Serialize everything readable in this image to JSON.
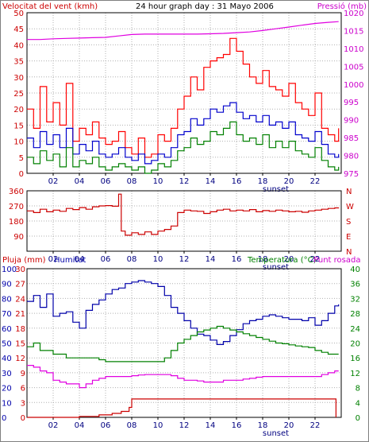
{
  "page": {
    "title": "24 hour graph day : 31 Mayo 2006",
    "border_color": "#7f7f7f",
    "background": "#ffffff"
  },
  "chart_data": [
    {
      "id": "wind-pressure",
      "type": "line",
      "title": "24 hour graph day : 31 Mayo 2006",
      "ylabel_left": "Velocitat del vent (kmh)",
      "ylabel_right": "Pressió (mb)",
      "ylim_left": [
        0,
        50
      ],
      "yticks_left": [
        "0",
        "5",
        "10",
        "15",
        "20",
        "25",
        "30",
        "35",
        "40",
        "45",
        "50"
      ],
      "ylim_right": [
        975,
        1020
      ],
      "yticks_right": [
        "975",
        "980",
        "985",
        "990",
        "995",
        "1000",
        "1005",
        "1010",
        "1015",
        "1020"
      ],
      "xlim": [
        0,
        24
      ],
      "xticks": [
        "02",
        "04",
        "06",
        "08",
        "10",
        "12",
        "14",
        "16",
        "18",
        "20",
        "22"
      ],
      "annotations": [
        "sunset"
      ],
      "grid": true,
      "series": [
        {
          "name": "Pressió (mb)",
          "axis": "right",
          "color": "#e000e0",
          "x": [
            0,
            1,
            2,
            3,
            4,
            5,
            6,
            7,
            8,
            9,
            10,
            11,
            12,
            13,
            14,
            15,
            16,
            17,
            18,
            19,
            20,
            21,
            22,
            23,
            23.8
          ],
          "y": [
            1012.5,
            1012.5,
            1012.7,
            1012.8,
            1012.9,
            1013.0,
            1013.1,
            1013.5,
            1013.9,
            1014.0,
            1014.0,
            1014.0,
            1014.0,
            1014.0,
            1014.1,
            1014.2,
            1014.4,
            1014.6,
            1015.0,
            1015.5,
            1016.0,
            1016.5,
            1017.0,
            1017.3,
            1017.5
          ]
        },
        {
          "name": "Velocitat del vent (kmh) - ràfega",
          "axis": "left",
          "color": "#ff0000",
          "x": [
            0,
            0.5,
            1,
            1.5,
            2,
            2.5,
            3,
            3.5,
            4,
            4.5,
            5,
            5.5,
            6,
            6.5,
            7,
            7.5,
            8,
            8.5,
            9,
            9.5,
            10,
            10.5,
            11,
            11.5,
            12,
            12.5,
            13,
            13.5,
            14,
            14.5,
            15,
            15.5,
            16,
            16.5,
            17,
            17.5,
            18,
            18.5,
            19,
            19.5,
            20,
            20.5,
            21,
            21.5,
            22,
            22.5,
            23,
            23.5,
            23.8
          ],
          "y": [
            20,
            14,
            27,
            16,
            22,
            15,
            28,
            10,
            14,
            12,
            16,
            11,
            9,
            10,
            13,
            8,
            6,
            11,
            5,
            6,
            12,
            10,
            14,
            20,
            24,
            30,
            26,
            33,
            35,
            36,
            37,
            42,
            38,
            34,
            30,
            28,
            32,
            27,
            26,
            24,
            28,
            22,
            20,
            18,
            25,
            14,
            12,
            10,
            14
          ]
        },
        {
          "name": "Velocitat del vent (kmh) - mitjana",
          "axis": "left",
          "color": "#0000cc",
          "x": [
            0,
            0.5,
            1,
            1.5,
            2,
            2.5,
            3,
            3.5,
            4,
            4.5,
            5,
            5.5,
            6,
            6.5,
            7,
            7.5,
            8,
            8.5,
            9,
            9.5,
            10,
            10.5,
            11,
            11.5,
            12,
            12.5,
            13,
            13.5,
            14,
            14.5,
            15,
            15.5,
            16,
            16.5,
            17,
            17.5,
            18,
            18.5,
            19,
            19.5,
            20,
            20.5,
            21,
            21.5,
            22,
            22.5,
            23,
            23.5,
            23.8
          ],
          "y": [
            11,
            8,
            13,
            9,
            12,
            8,
            14,
            6,
            9,
            7,
            10,
            6,
            5,
            6,
            8,
            5,
            4,
            6,
            3,
            4,
            6,
            5,
            8,
            12,
            13,
            17,
            15,
            17,
            20,
            19,
            21,
            22,
            19,
            17,
            18,
            16,
            18,
            15,
            16,
            14,
            16,
            12,
            11,
            10,
            13,
            9,
            6,
            5,
            6
          ]
        },
        {
          "name": "Velocitat del vent (kmh) - mínima",
          "axis": "left",
          "color": "#008000",
          "x": [
            0,
            0.5,
            1,
            1.5,
            2,
            2.5,
            3,
            3.5,
            4,
            4.5,
            5,
            5.5,
            6,
            6.5,
            7,
            7.5,
            8,
            8.5,
            9,
            9.5,
            10,
            10.5,
            11,
            11.5,
            12,
            12.5,
            13,
            13.5,
            14,
            14.5,
            15,
            15.5,
            16,
            16.5,
            17,
            17.5,
            18,
            18.5,
            19,
            19.5,
            20,
            20.5,
            21,
            21.5,
            22,
            22.5,
            23,
            23.5,
            23.8
          ],
          "y": [
            5,
            3,
            7,
            4,
            6,
            2,
            8,
            2,
            4,
            3,
            5,
            2,
            1,
            2,
            3,
            2,
            1,
            2,
            0,
            1,
            3,
            2,
            4,
            7,
            8,
            11,
            9,
            10,
            13,
            12,
            14,
            16,
            12,
            10,
            11,
            9,
            12,
            8,
            10,
            8,
            10,
            7,
            6,
            5,
            8,
            4,
            2,
            1,
            2
          ]
        }
      ]
    },
    {
      "id": "wind-direction",
      "type": "line",
      "ylim_left": [
        0,
        360
      ],
      "yticks_left": [
        "90",
        "180",
        "270",
        "360"
      ],
      "ylabels_right": [
        "N",
        "W",
        "S",
        "E",
        "N"
      ],
      "xlim": [
        0,
        24
      ],
      "xticks": [
        "02",
        "04",
        "06",
        "08",
        "10",
        "12",
        "14",
        "16",
        "18",
        "20",
        "22"
      ],
      "annotations": [
        "sunset"
      ],
      "grid": true,
      "series": [
        {
          "name": "Direcció del vent",
          "color": "#cc0000",
          "x": [
            0,
            0.5,
            1,
            1.5,
            2,
            2.5,
            3,
            3.5,
            4,
            4.5,
            5,
            5.5,
            6,
            6.5,
            7,
            7.2,
            7.5,
            8,
            8.5,
            9,
            9.5,
            10,
            10.5,
            11,
            11.5,
            12,
            12.5,
            13,
            13.5,
            14,
            14.5,
            15,
            15.5,
            16,
            16.5,
            17,
            17.5,
            18,
            18.5,
            19,
            19.5,
            20,
            20.5,
            21,
            21.5,
            22,
            22.5,
            23,
            23.5,
            23.8
          ],
          "y": [
            240,
            230,
            250,
            235,
            245,
            238,
            255,
            248,
            260,
            250,
            265,
            270,
            272,
            268,
            340,
            120,
            95,
            110,
            100,
            115,
            100,
            120,
            130,
            150,
            230,
            245,
            240,
            238,
            225,
            235,
            245,
            250,
            240,
            245,
            240,
            248,
            235,
            242,
            238,
            245,
            240,
            235,
            238,
            232,
            240,
            245,
            250,
            255,
            258,
            260
          ]
        }
      ]
    },
    {
      "id": "rain-humidity-temp",
      "type": "line",
      "ylabel_rain": "Pluja (mm)",
      "ylabel_humidity": "Humitat",
      "ylabel_temp": "Temperatura (°C)",
      "ylabel_dew": "Punt rosada",
      "ylim_rain": [
        0,
        30
      ],
      "yticks_rain": [
        "0",
        "3",
        "6",
        "9",
        "12",
        "15",
        "18",
        "21",
        "24",
        "27",
        "30"
      ],
      "ylim_humidity": [
        0,
        100
      ],
      "yticks_humidity": [
        "0",
        "10",
        "20",
        "30",
        "40",
        "50",
        "60",
        "70",
        "80",
        "90",
        "100"
      ],
      "ylim_temp": [
        0,
        40
      ],
      "yticks_temp": [
        "0",
        "4",
        "8",
        "12",
        "16",
        "20",
        "24",
        "28",
        "32",
        "36",
        "40"
      ],
      "xlim": [
        0,
        24
      ],
      "xticks": [
        "02",
        "04",
        "06",
        "08",
        "10",
        "12",
        "14",
        "16",
        "18",
        "20",
        "22"
      ],
      "annotations": [
        "sunset"
      ],
      "grid": true,
      "series": [
        {
          "name": "Humitat",
          "axis": "humidity",
          "color": "#0000aa",
          "x": [
            0,
            0.5,
            1,
            1.5,
            2,
            2.5,
            3,
            3.5,
            4,
            4.5,
            5,
            5.5,
            6,
            6.5,
            7,
            7.5,
            8,
            8.5,
            9,
            9.5,
            10,
            10.5,
            11,
            11.5,
            12,
            12.5,
            13,
            13.5,
            14,
            14.5,
            15,
            15.5,
            16,
            16.5,
            17,
            17.5,
            18,
            18.5,
            19,
            19.5,
            20,
            20.5,
            21,
            21.5,
            22,
            22.5,
            23,
            23.5,
            23.8
          ],
          "y": [
            78,
            82,
            74,
            83,
            68,
            70,
            71,
            64,
            60,
            72,
            76,
            79,
            83,
            86,
            87,
            90,
            91,
            92,
            91,
            90,
            88,
            82,
            74,
            70,
            65,
            60,
            56,
            55,
            52,
            49,
            51,
            55,
            59,
            63,
            65,
            66,
            68,
            69,
            68,
            67,
            66,
            66,
            65,
            67,
            62,
            65,
            70,
            75,
            76
          ]
        },
        {
          "name": "Temperatura (°C)",
          "axis": "temp",
          "color": "#008000",
          "x": [
            0,
            0.5,
            1,
            1.5,
            2,
            2.5,
            3,
            3.5,
            4,
            4.5,
            5,
            5.5,
            6,
            6.5,
            7,
            7.5,
            8,
            8.5,
            9,
            9.5,
            10,
            10.5,
            11,
            11.5,
            12,
            12.5,
            13,
            13.5,
            14,
            14.5,
            15,
            15.5,
            16,
            16.5,
            17,
            17.5,
            18,
            18.5,
            19,
            19.5,
            20,
            20.5,
            21,
            21.5,
            22,
            22.5,
            23,
            23.5,
            23.8
          ],
          "y": [
            19,
            20,
            18,
            18,
            17,
            17,
            16,
            16,
            16,
            16,
            16,
            15.5,
            15,
            15,
            15,
            15,
            15,
            15,
            15,
            15,
            15,
            16,
            18,
            20,
            21,
            22,
            23,
            23.5,
            24,
            24.5,
            24,
            23.5,
            23,
            22.5,
            22,
            21.5,
            21,
            20.5,
            20,
            19.8,
            19.5,
            19.2,
            19,
            18.8,
            18,
            17.5,
            17,
            17,
            17
          ]
        },
        {
          "name": "Punt rosada",
          "axis": "temp",
          "color": "#e000e0",
          "x": [
            0,
            0.5,
            1,
            1.5,
            2,
            2.5,
            3,
            3.5,
            4,
            4.5,
            5,
            5.5,
            6,
            6.5,
            7,
            7.5,
            8,
            8.5,
            9,
            9.5,
            10,
            10.5,
            11,
            11.5,
            12,
            12.5,
            13,
            13.5,
            14,
            14.5,
            15,
            15.5,
            16,
            16.5,
            17,
            17.5,
            18,
            18.5,
            19,
            19.5,
            20,
            20.5,
            21,
            21.5,
            22,
            22.5,
            23,
            23.5,
            23.8
          ],
          "y": [
            14,
            13.5,
            12.5,
            12,
            10,
            9.5,
            9,
            9,
            8,
            9,
            10,
            10.5,
            11,
            11,
            11,
            11,
            11.2,
            11.4,
            11.5,
            11.5,
            11.5,
            11.5,
            11.2,
            10.5,
            10,
            10,
            9.8,
            9.5,
            9.5,
            9.5,
            10,
            10,
            10,
            10.3,
            10.5,
            10.8,
            11,
            11,
            11,
            11,
            11,
            11,
            11,
            11,
            11,
            11.5,
            12,
            12.5,
            12.5
          ]
        },
        {
          "name": "Pluja (mm)",
          "axis": "rain",
          "color": "#cc0000",
          "x": [
            0,
            4,
            5.5,
            6.5,
            7.2,
            7.8,
            8.0,
            10,
            20,
            23.5,
            23.6
          ],
          "y": [
            0,
            0.2,
            0.5,
            0.8,
            1.2,
            2.0,
            3.7,
            3.7,
            3.7,
            3.7,
            0
          ]
        }
      ]
    }
  ]
}
